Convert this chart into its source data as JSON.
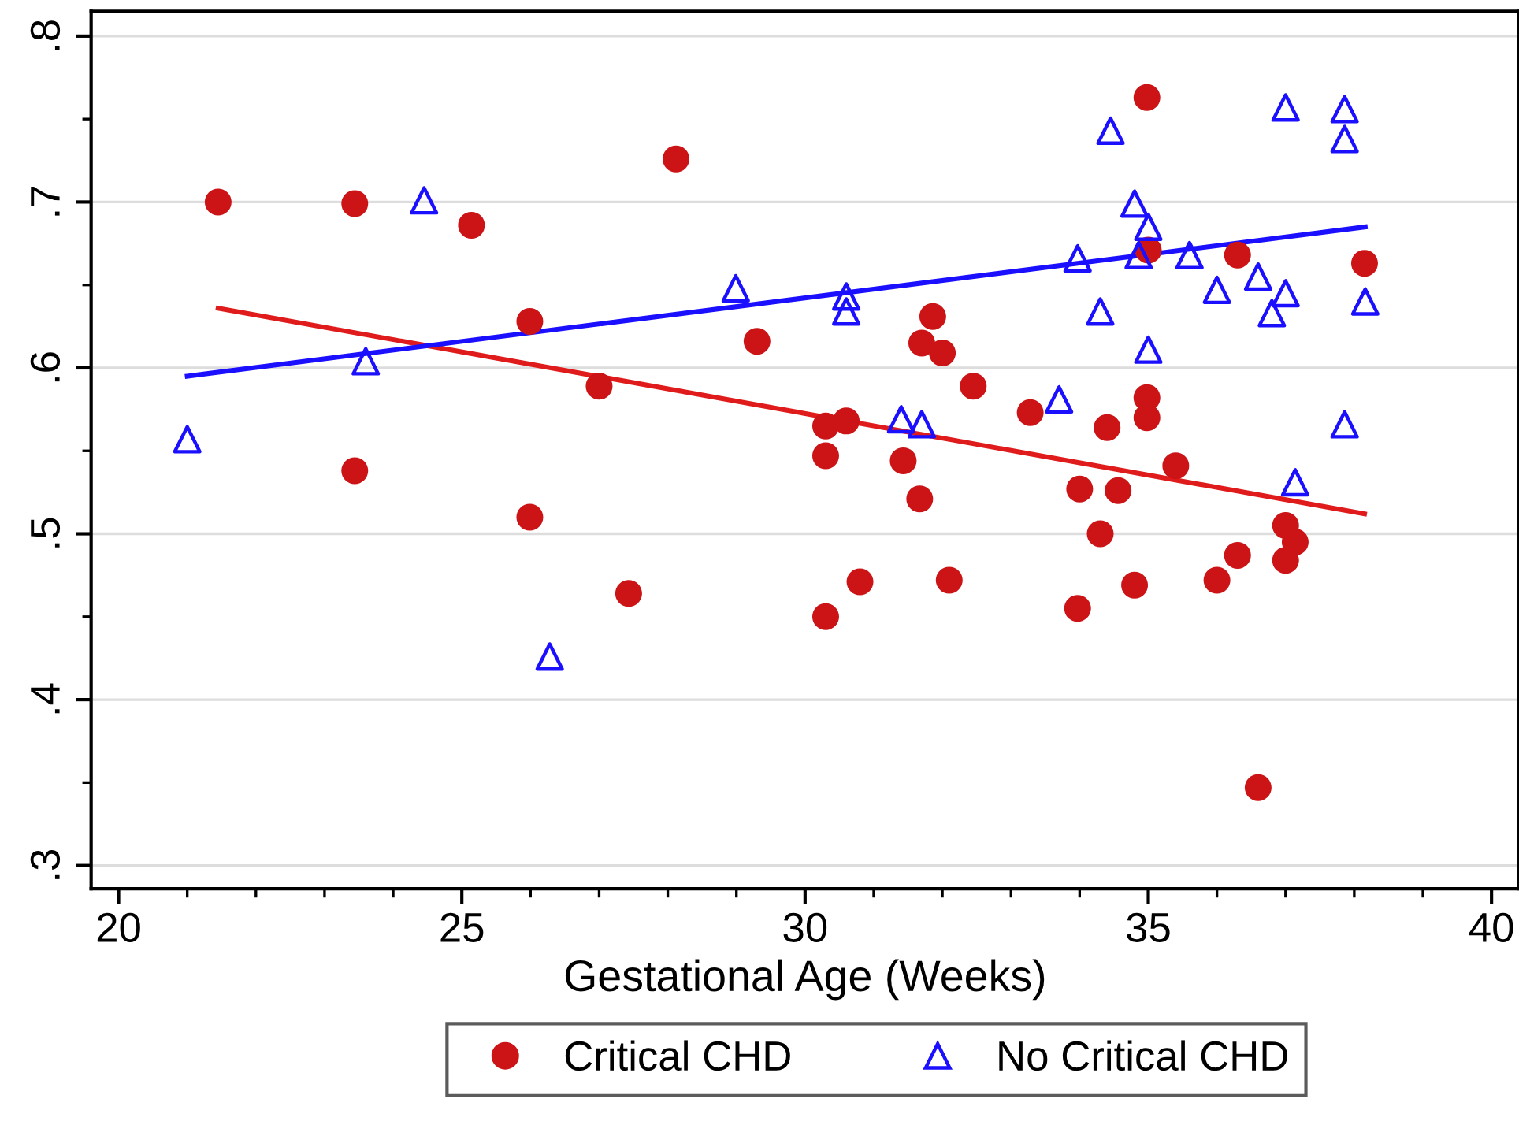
{
  "chart_data": {
    "type": "scatter",
    "xlabel": "Gestational Age (Weeks)",
    "xlim": [
      19.6,
      40.4
    ],
    "ylim": [
      0.286,
      0.815
    ],
    "xticks": [
      20,
      {
        "value": 21,
        "label": null
      },
      {
        "value": 22,
        "label": null
      },
      {
        "value": 23,
        "label": null
      },
      {
        "value": 24,
        "label": null
      },
      25,
      {
        "value": 26,
        "label": null
      },
      {
        "value": 27,
        "label": null
      },
      {
        "value": 28,
        "label": null
      },
      {
        "value": 29,
        "label": null
      },
      30,
      {
        "value": 31,
        "label": null
      },
      {
        "value": 32,
        "label": null
      },
      {
        "value": 33,
        "label": null
      },
      {
        "value": 34,
        "label": null
      },
      35,
      {
        "value": 36,
        "label": null
      },
      {
        "value": 37,
        "label": null
      },
      {
        "value": 38,
        "label": null
      },
      {
        "value": 39,
        "label": null
      },
      40
    ],
    "yticks": [
      {
        "value": 0.3,
        "label": ".3"
      },
      {
        "value": 0.35,
        "label": null
      },
      {
        "value": 0.4,
        "label": ".4"
      },
      {
        "value": 0.45,
        "label": null
      },
      {
        "value": 0.5,
        "label": ".5"
      },
      {
        "value": 0.55,
        "label": null
      },
      {
        "value": 0.6,
        "label": ".6"
      },
      {
        "value": 0.65,
        "label": null
      },
      {
        "value": 0.7,
        "label": ".7"
      },
      {
        "value": 0.75,
        "label": null
      },
      {
        "value": 0.8,
        "label": ".8"
      }
    ],
    "grid": "y",
    "legend": "bottom",
    "series": [
      {
        "name": "Critical CHD",
        "marker": "circle",
        "color": "#cc1417",
        "x": [
          21.45,
          23.44,
          23.44,
          25.14,
          25.99,
          25.99,
          27.0,
          27.43,
          28.12,
          29.3,
          30.3,
          30.3,
          30.3,
          30.6,
          30.8,
          31.43,
          31.67,
          31.7,
          31.86,
          32.0,
          32.1,
          32.45,
          33.28,
          33.97,
          34.0,
          34.3,
          34.4,
          34.56,
          34.8,
          34.98,
          34.98,
          34.98,
          35.0,
          35.4,
          36.0,
          36.3,
          36.3,
          36.6,
          37.0,
          37.0,
          37.14,
          38.15
        ],
        "values": [
          0.7,
          0.699,
          0.538,
          0.686,
          0.628,
          0.51,
          0.589,
          0.464,
          0.726,
          0.616,
          0.45,
          0.547,
          0.565,
          0.568,
          0.471,
          0.544,
          0.521,
          0.615,
          0.631,
          0.609,
          0.472,
          0.589,
          0.573,
          0.455,
          0.527,
          0.5,
          0.564,
          0.526,
          0.469,
          0.763,
          0.582,
          0.57,
          0.671,
          0.541,
          0.472,
          0.487,
          0.668,
          0.347,
          0.505,
          0.484,
          0.495,
          0.663
        ]
      },
      {
        "name": "No Critical CHD",
        "marker": "triangle",
        "color": "#1a0fff",
        "x": [
          21.0,
          23.6,
          24.45,
          26.28,
          28.99,
          30.6,
          30.6,
          31.4,
          31.7,
          33.7,
          33.97,
          34.3,
          34.45,
          34.8,
          34.86,
          35.0,
          35.0,
          35.6,
          36.0,
          36.6,
          36.8,
          37.0,
          37.0,
          37.14,
          37.86,
          37.86,
          37.86,
          38.16
        ],
        "values": [
          0.557,
          0.604,
          0.701,
          0.426,
          0.648,
          0.643,
          0.634,
          0.569,
          0.566,
          0.581,
          0.666,
          0.634,
          0.743,
          0.699,
          0.668,
          0.685,
          0.611,
          0.668,
          0.647,
          0.655,
          0.633,
          0.645,
          0.757,
          0.531,
          0.756,
          0.738,
          0.566,
          0.64
        ]
      },
      {
        "type": "line",
        "marker": "none",
        "color": "#e01b1b",
        "x": [
          21.45,
          38.15
        ],
        "values": [
          0.636,
          0.512
        ]
      },
      {
        "type": "line",
        "marker": "none",
        "color": "#1a0fff",
        "x": [
          21.0,
          38.16
        ],
        "values": [
          0.595,
          0.685
        ]
      }
    ]
  }
}
